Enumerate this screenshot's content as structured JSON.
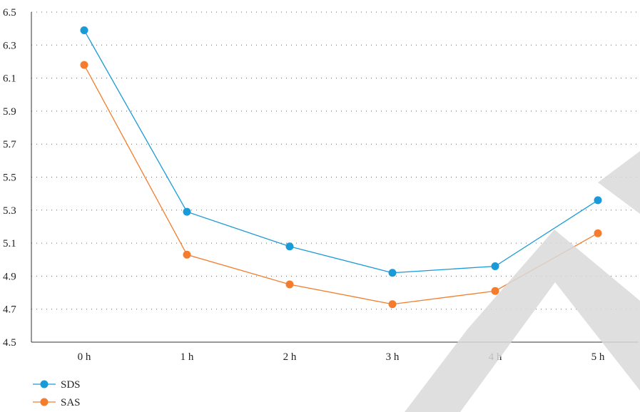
{
  "chart_data": {
    "type": "line",
    "title": "",
    "xlabel": "",
    "ylabel": "",
    "categories": [
      "0 h",
      "1 h",
      "2 h",
      "3 h",
      "4 h",
      "5 h"
    ],
    "ylim": [
      4.5,
      6.5
    ],
    "yticks": [
      "4.5",
      "4.7",
      "4.9",
      "5.1",
      "5.3",
      "5.5",
      "5.7",
      "5.9",
      "6.1",
      "6.3",
      "6.5"
    ],
    "grid": "horizontal dotted",
    "legend_position": "bottom-left",
    "series": [
      {
        "name": "SDS",
        "color": "#1a9ad6",
        "values": [
          6.39,
          5.29,
          5.08,
          4.92,
          4.96,
          5.36
        ]
      },
      {
        "name": "SAS",
        "color": "#f47c2c",
        "values": [
          6.18,
          5.03,
          4.85,
          4.73,
          4.81,
          5.16
        ]
      }
    ],
    "watermark_color": "#d9d9d9"
  }
}
